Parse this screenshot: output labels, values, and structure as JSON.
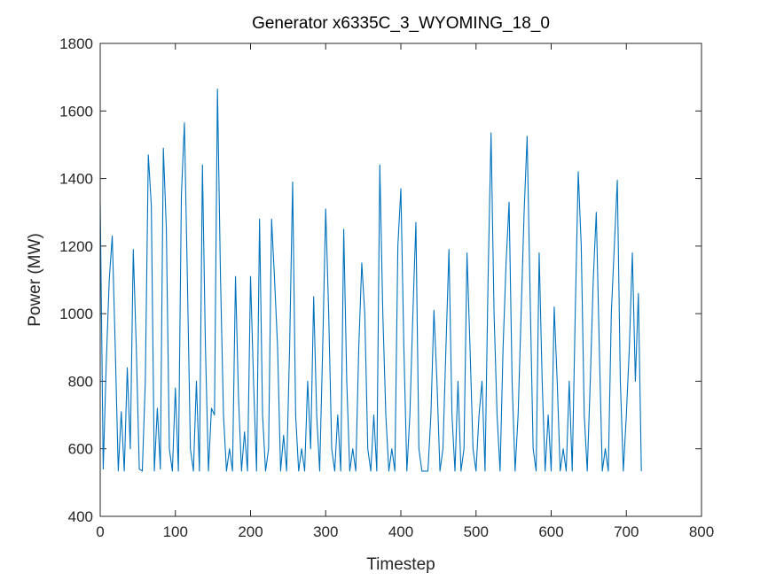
{
  "chart_data": {
    "type": "line",
    "title": "Generator x6335C_3_WYOMING_18_0",
    "xlabel": "Timestep",
    "ylabel": "Power (MW)",
    "color": "#0072bd",
    "xlim": [
      0,
      800
    ],
    "ylim": [
      400,
      1800
    ],
    "xticks": [
      0,
      100,
      200,
      300,
      400,
      500,
      600,
      700,
      800
    ],
    "yticks": [
      400,
      600,
      800,
      1000,
      1200,
      1400,
      1600,
      1800
    ],
    "x": [
      0,
      4,
      8,
      12,
      16,
      20,
      24,
      28,
      32,
      36,
      40,
      44,
      48,
      52,
      56,
      60,
      64,
      68,
      72,
      76,
      80,
      84,
      88,
      92,
      96,
      100,
      104,
      108,
      112,
      116,
      120,
      124,
      128,
      132,
      136,
      140,
      144,
      148,
      152,
      156,
      160,
      164,
      168,
      172,
      176,
      180,
      184,
      188,
      192,
      196,
      200,
      204,
      208,
      212,
      216,
      220,
      224,
      228,
      232,
      236,
      240,
      244,
      248,
      252,
      256,
      260,
      264,
      268,
      272,
      276,
      280,
      284,
      288,
      292,
      296,
      300,
      304,
      308,
      312,
      316,
      320,
      324,
      328,
      332,
      336,
      340,
      344,
      348,
      352,
      356,
      360,
      364,
      368,
      372,
      376,
      380,
      384,
      388,
      392,
      396,
      400,
      404,
      408,
      412,
      416,
      420,
      424,
      428,
      432,
      436,
      440,
      444,
      448,
      452,
      456,
      460,
      464,
      468,
      472,
      476,
      480,
      484,
      488,
      492,
      496,
      500,
      504,
      508,
      512,
      516,
      520,
      524,
      528,
      532,
      536,
      540,
      544,
      548,
      552,
      556,
      560,
      564,
      568,
      572,
      576,
      580,
      584,
      588,
      592,
      596,
      600,
      604,
      608,
      612,
      616,
      620,
      624,
      628,
      632,
      636,
      640,
      644,
      648,
      652,
      656,
      660,
      664,
      668,
      672,
      676,
      680,
      684,
      688,
      692,
      696,
      700,
      704,
      708,
      712,
      716,
      720
    ],
    "values": [
      1330,
      540,
      850,
      1100,
      1230,
      900,
      534,
      710,
      534,
      840,
      600,
      1190,
      900,
      540,
      534,
      800,
      1470,
      1320,
      534,
      720,
      540,
      1490,
      1250,
      600,
      534,
      780,
      534,
      1350,
      1565,
      1100,
      600,
      534,
      800,
      534,
      1440,
      900,
      534,
      720,
      700,
      1665,
      1110,
      700,
      534,
      600,
      534,
      1110,
      750,
      534,
      650,
      534,
      1110,
      800,
      534,
      1280,
      700,
      534,
      600,
      1280,
      1100,
      900,
      534,
      640,
      534,
      900,
      1390,
      700,
      534,
      600,
      534,
      800,
      600,
      1050,
      700,
      534,
      900,
      1310,
      1000,
      600,
      534,
      700,
      534,
      1250,
      800,
      534,
      600,
      534,
      900,
      1150,
      1000,
      600,
      534,
      700,
      534,
      1440,
      1000,
      700,
      534,
      600,
      534,
      1200,
      1370,
      900,
      534,
      700,
      1000,
      1270,
      600,
      534,
      534,
      534,
      700,
      1010,
      800,
      534,
      600,
      900,
      1190,
      700,
      534,
      800,
      534,
      600,
      1180,
      900,
      600,
      534,
      700,
      800,
      534,
      1100,
      1535,
      1000,
      700,
      534,
      900,
      1150,
      1330,
      800,
      534,
      700,
      1000,
      1300,
      1525,
      1050,
      600,
      534,
      1180,
      800,
      534,
      700,
      534,
      1020,
      800,
      534,
      600,
      534,
      800,
      534,
      1000,
      1420,
      1200,
      700,
      534,
      800,
      1100,
      1300,
      900,
      534,
      600,
      534,
      1000,
      1200,
      1395,
      800,
      534,
      700,
      900,
      1180,
      800,
      1060,
      534
    ]
  }
}
